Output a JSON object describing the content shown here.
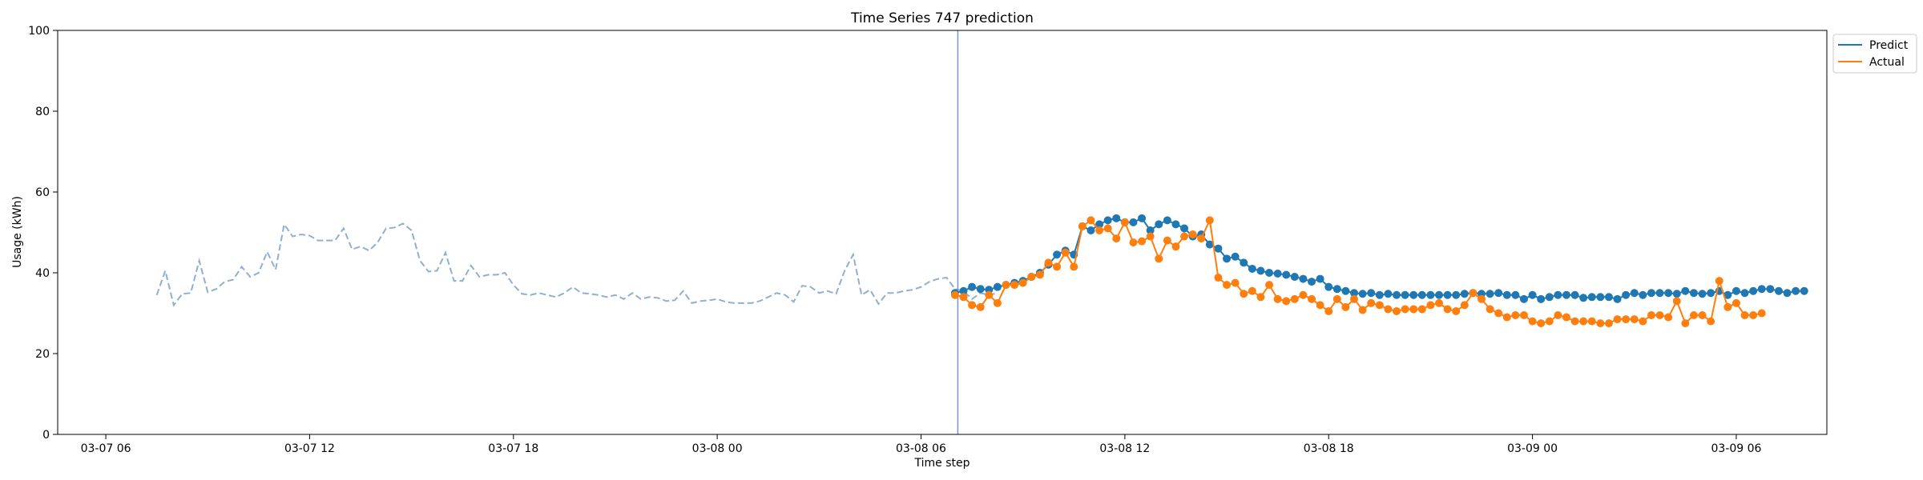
{
  "chart_data": {
    "type": "line",
    "title": "Time Series 747 prediction",
    "xlabel": "Time step",
    "ylabel": "Usage (kWh)",
    "ylim": [
      0,
      100
    ],
    "yticks": [
      0,
      20,
      40,
      60,
      80,
      100
    ],
    "xlim": [
      "2025-03-07 04:35",
      "2025-03-09 08:40"
    ],
    "xticks": [
      {
        "t": "2025-03-07 06:00",
        "label": "03-07 06"
      },
      {
        "t": "2025-03-07 12:00",
        "label": "03-07 12"
      },
      {
        "t": "2025-03-07 18:00",
        "label": "03-07 18"
      },
      {
        "t": "2025-03-08 00:00",
        "label": "03-08 00"
      },
      {
        "t": "2025-03-08 06:00",
        "label": "03-08 06"
      },
      {
        "t": "2025-03-08 12:00",
        "label": "03-08 12"
      },
      {
        "t": "2025-03-08 18:00",
        "label": "03-08 18"
      },
      {
        "t": "2025-03-09 00:00",
        "label": "03-09 00"
      },
      {
        "t": "2025-03-09 06:00",
        "label": "03-09 06"
      }
    ],
    "history": {
      "start": "2025-03-07 07:30",
      "step_minutes": 15,
      "values": [
        34.5,
        40.5,
        32.0,
        34.8,
        35.0,
        43.0,
        35.2,
        36.0,
        37.8,
        38.3,
        41.5,
        39.0,
        40.0,
        45.2,
        40.8,
        52.0,
        49.0,
        49.5,
        49.2,
        48.0,
        48.0,
        48.0,
        51.0,
        45.8,
        46.5,
        45.5,
        47.5,
        51.0,
        51.2,
        52.2,
        50.5,
        43.0,
        40.3,
        40.5,
        45.0,
        38.0,
        38.0,
        41.8,
        39.0,
        39.5,
        39.5,
        40.0,
        37.0,
        34.8,
        34.5,
        35.0,
        34.5,
        34.0,
        35.0,
        36.5,
        35.0,
        34.8,
        34.5,
        34.0,
        34.5,
        33.5,
        35.0,
        33.5,
        34.0,
        33.8,
        33.0,
        33.2,
        35.5,
        32.5,
        33.0,
        33.2,
        33.5,
        32.8,
        32.5,
        32.5,
        32.5,
        33.0,
        34.0,
        35.0,
        34.5,
        32.8,
        36.8,
        36.5,
        35.0,
        35.5,
        34.8,
        40.5,
        44.5,
        34.5,
        35.8,
        32.3,
        35.0,
        35.0,
        35.5,
        35.8,
        36.5,
        37.8,
        38.5,
        38.8,
        36.0,
        35.5,
        33.5,
        35.0,
        34.5,
        35.0
      ]
    },
    "split_time": "2025-03-08 07:05",
    "forecast_start": "2025-03-08 07:00",
    "step_minutes": 15,
    "series": [
      {
        "name": "Predict",
        "color": "#1f77b4",
        "values": [
          35.0,
          35.5,
          36.5,
          36.0,
          35.8,
          36.5,
          37.0,
          37.5,
          38.0,
          39.0,
          40.0,
          42.0,
          44.5,
          45.5,
          44.5,
          51.5,
          50.5,
          52.0,
          53.0,
          53.5,
          52.5,
          52.5,
          53.5,
          50.5,
          52.0,
          53.0,
          52.0,
          51.0,
          49.0,
          49.5,
          47.0,
          46.0,
          43.5,
          44.0,
          42.5,
          41.0,
          40.5,
          40.0,
          39.8,
          39.5,
          39.0,
          38.5,
          37.8,
          38.5,
          36.5,
          36.0,
          35.5,
          35.0,
          34.8,
          35.0,
          34.5,
          34.8,
          34.5,
          34.5,
          34.5,
          34.5,
          34.5,
          34.5,
          34.5,
          34.5,
          34.8,
          35.0,
          34.8,
          34.8,
          35.0,
          34.5,
          34.5,
          33.5,
          34.5,
          33.5,
          34.0,
          34.5,
          34.5,
          34.5,
          33.8,
          34.0,
          34.0,
          34.0,
          33.5,
          34.5,
          35.0,
          34.5,
          35.0,
          35.0,
          35.0,
          34.8,
          35.5,
          35.0,
          34.8,
          35.0,
          35.5,
          34.5,
          35.5,
          35.0,
          35.5,
          36.0,
          36.0,
          35.5,
          35.0,
          35.5,
          35.5
        ]
      },
      {
        "name": "Actual",
        "color": "#ff7f0e",
        "values": [
          34.5,
          34.0,
          32.0,
          31.5,
          34.5,
          32.5,
          37.0,
          37.0,
          37.5,
          39.0,
          39.5,
          42.5,
          41.5,
          45.0,
          41.5,
          51.5,
          53.0,
          50.5,
          51.0,
          48.5,
          52.5,
          47.5,
          47.8,
          49.0,
          43.5,
          48.0,
          46.5,
          49.0,
          49.5,
          48.5,
          53.0,
          38.8,
          37.0,
          37.5,
          34.8,
          35.5,
          34.0,
          37.0,
          33.5,
          33.0,
          33.5,
          34.5,
          33.5,
          32.0,
          30.5,
          33.5,
          31.5,
          33.5,
          30.8,
          32.5,
          32.0,
          31.0,
          30.5,
          31.0,
          31.0,
          31.0,
          32.0,
          32.5,
          31.0,
          30.5,
          32.0,
          35.0,
          33.5,
          31.0,
          30.0,
          29.0,
          29.5,
          29.5,
          28.0,
          27.5,
          28.0,
          29.5,
          29.0,
          28.0,
          28.0,
          28.0,
          27.5,
          27.5,
          28.5,
          28.5,
          28.5,
          28.0,
          29.5,
          29.5,
          29.0,
          33.0,
          27.5,
          29.5,
          29.5,
          28.0,
          38.0,
          31.5,
          32.5,
          29.5,
          29.5,
          30.0
        ]
      }
    ],
    "legend_position": "upper-right-outside",
    "grid": false
  }
}
